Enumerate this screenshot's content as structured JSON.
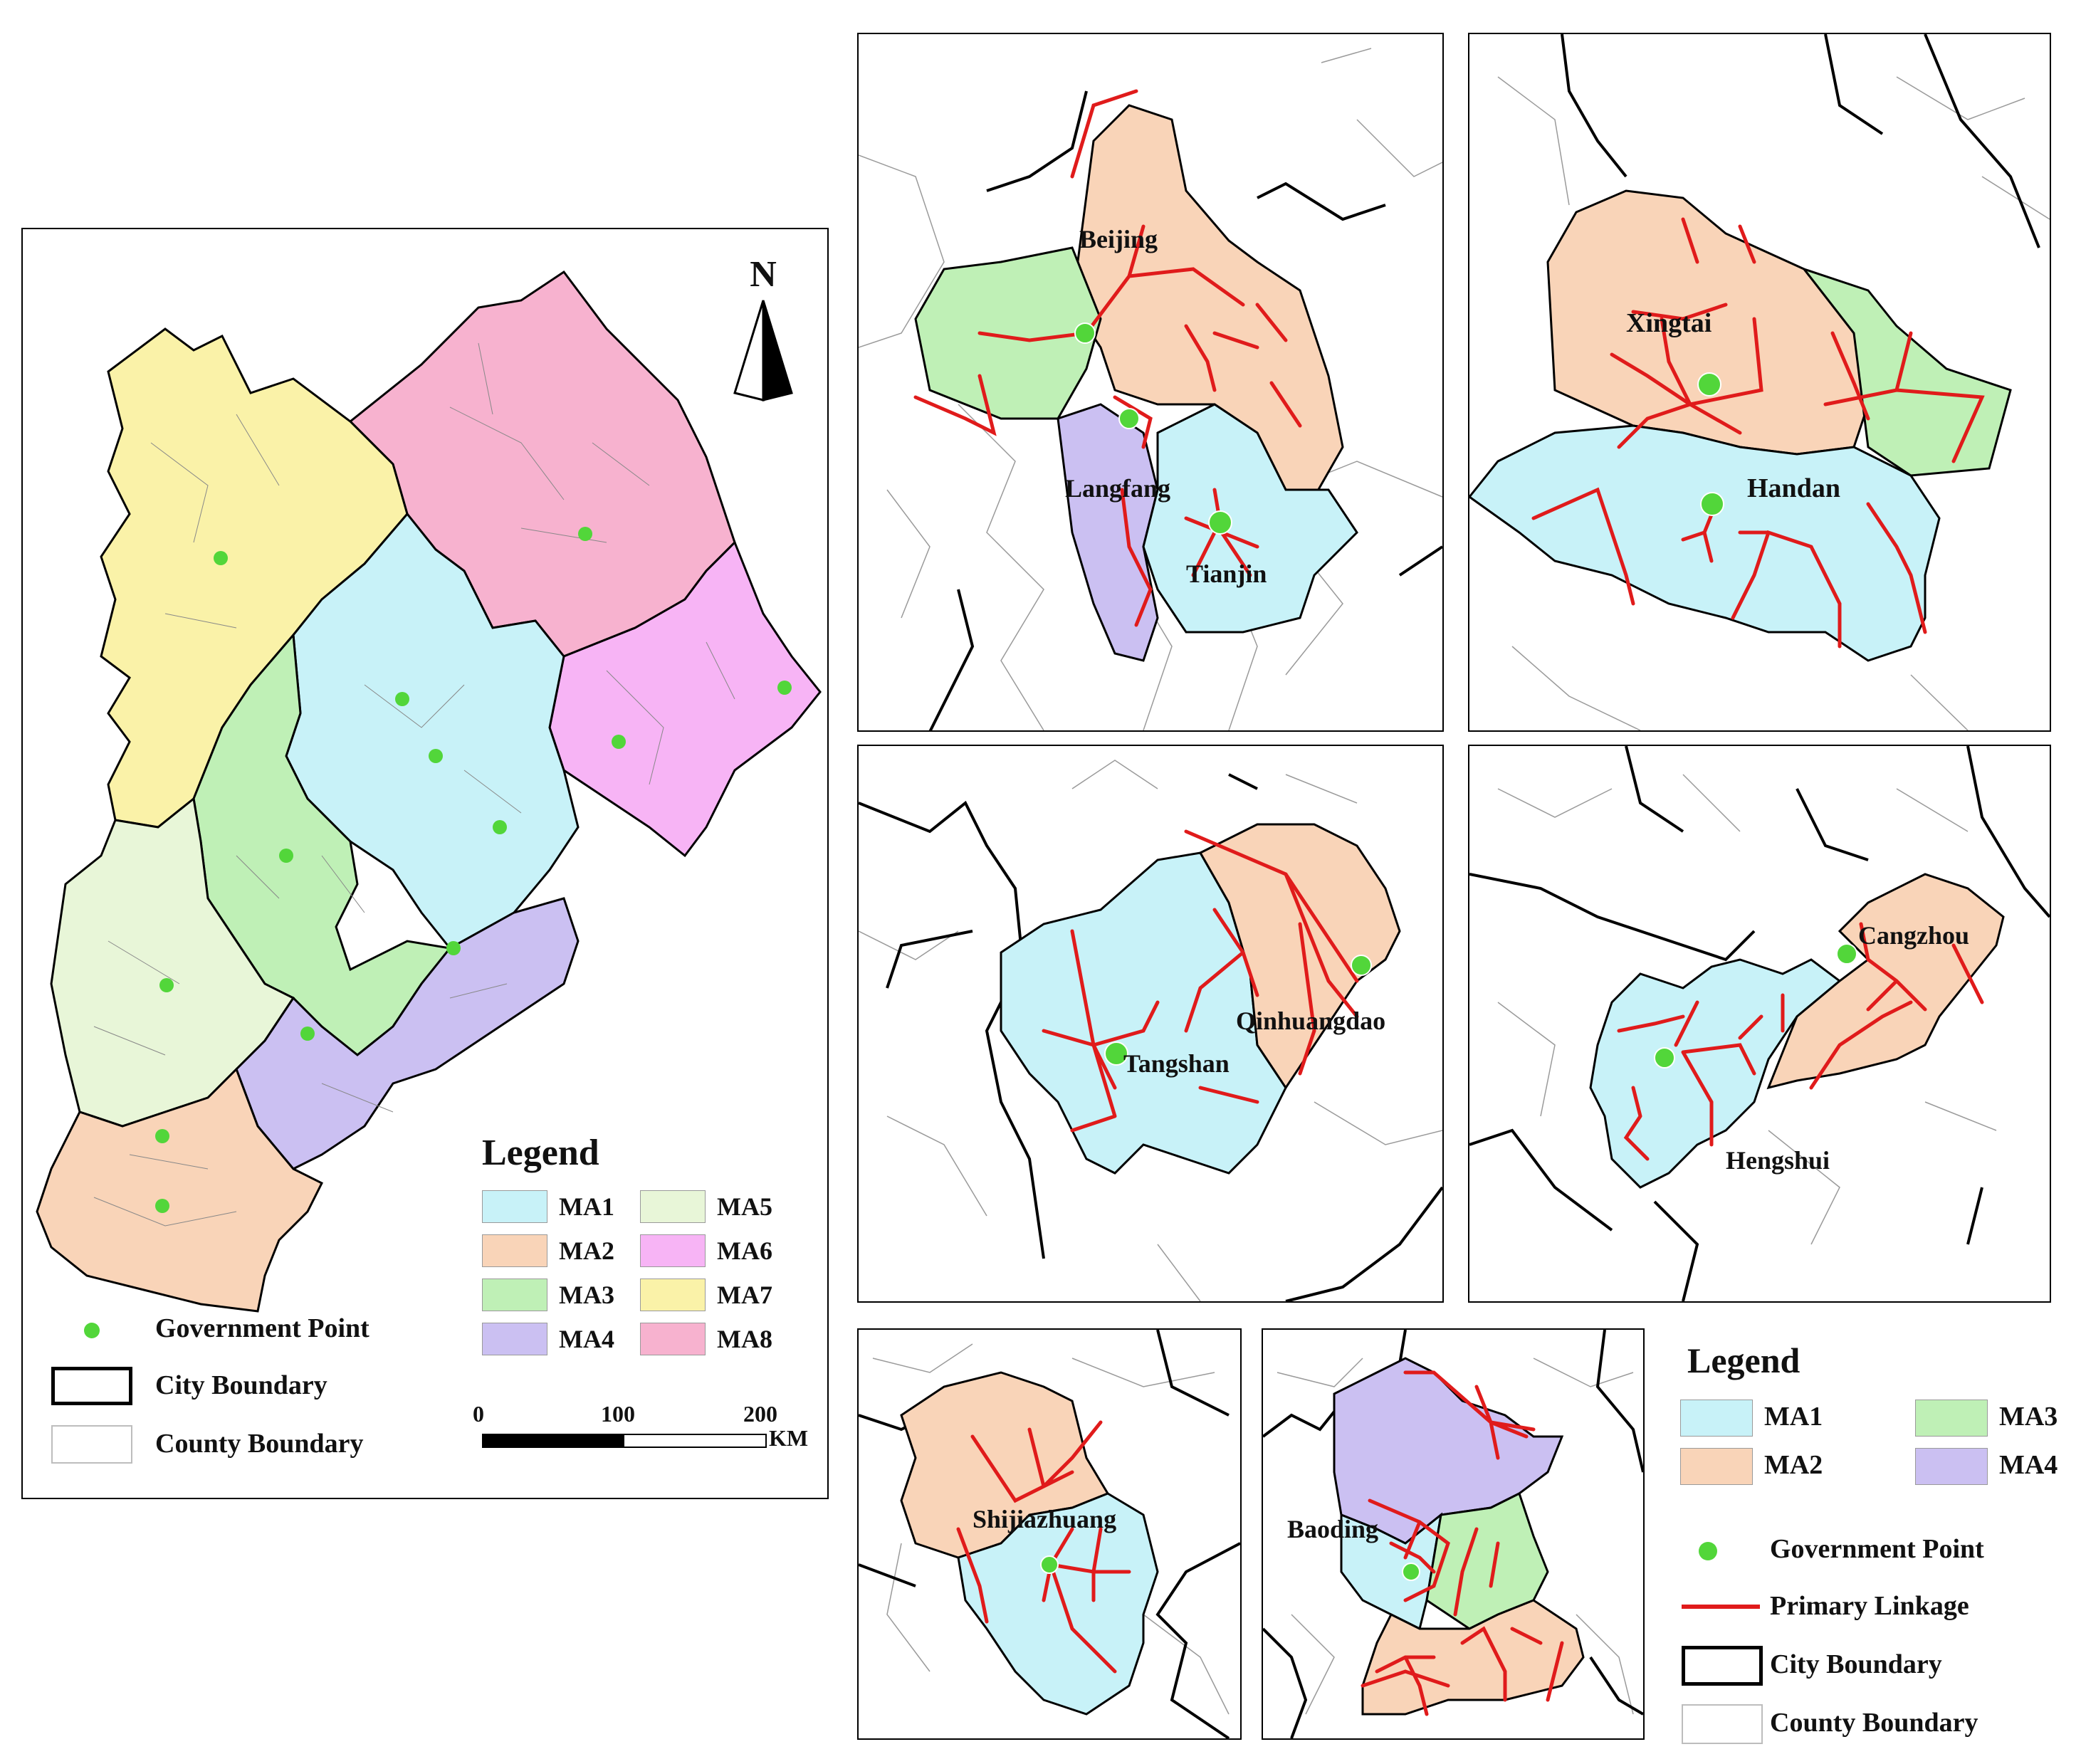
{
  "colors": {
    "MA1": "#c8f2f8",
    "MA2": "#f9d4b8",
    "MA3": "#bff0b6",
    "MA4": "#cbc0f2",
    "MA5": "#e8f6d8",
    "MA6": "#f7b4f5",
    "MA7": "#faf2a8",
    "MA8": "#f7b2cf",
    "government_point": "#52d63a",
    "linkage": "#e01b1b"
  },
  "overview": {
    "north_label": "N",
    "legend_title": "Legend",
    "legend_items": [
      {
        "key": "MA1",
        "label": "MA1"
      },
      {
        "key": "MA5",
        "label": "MA5"
      },
      {
        "key": "MA2",
        "label": "MA2"
      },
      {
        "key": "MA6",
        "label": "MA6"
      },
      {
        "key": "MA3",
        "label": "MA3"
      },
      {
        "key": "MA7",
        "label": "MA7"
      },
      {
        "key": "MA4",
        "label": "MA4"
      },
      {
        "key": "MA8",
        "label": "MA8"
      }
    ],
    "symbol_legend": {
      "government_point": "Government Point",
      "city_boundary": "City Boundary",
      "county_boundary": "County Boundary"
    },
    "scale": {
      "ticks": [
        "0",
        "100",
        "200"
      ],
      "unit": "KM"
    }
  },
  "insets": {
    "beijing": {
      "labels": [
        "Beijing",
        "Langfang",
        "Tianjin"
      ]
    },
    "xingtai": {
      "labels": [
        "Xingtai",
        "Handan"
      ]
    },
    "tangshan": {
      "labels": [
        "Qinhuangdao",
        "Tangshan"
      ]
    },
    "cangzhou": {
      "labels": [
        "Cangzhou",
        "Hengshui"
      ]
    },
    "shijiazhuang": {
      "labels": [
        "Shijiazhuang"
      ]
    },
    "baoding": {
      "labels": [
        "Baoding"
      ]
    }
  },
  "inset_legend": {
    "title": "Legend",
    "items": [
      {
        "key": "MA1",
        "label": "MA1"
      },
      {
        "key": "MA3",
        "label": "MA3"
      },
      {
        "key": "MA2",
        "label": "MA2"
      },
      {
        "key": "MA4",
        "label": "MA4"
      }
    ],
    "government_point": "Government Point",
    "primary_linkage": "Primary Linkage",
    "city_boundary": "City Boundary",
    "county_boundary": "County Boundary"
  }
}
